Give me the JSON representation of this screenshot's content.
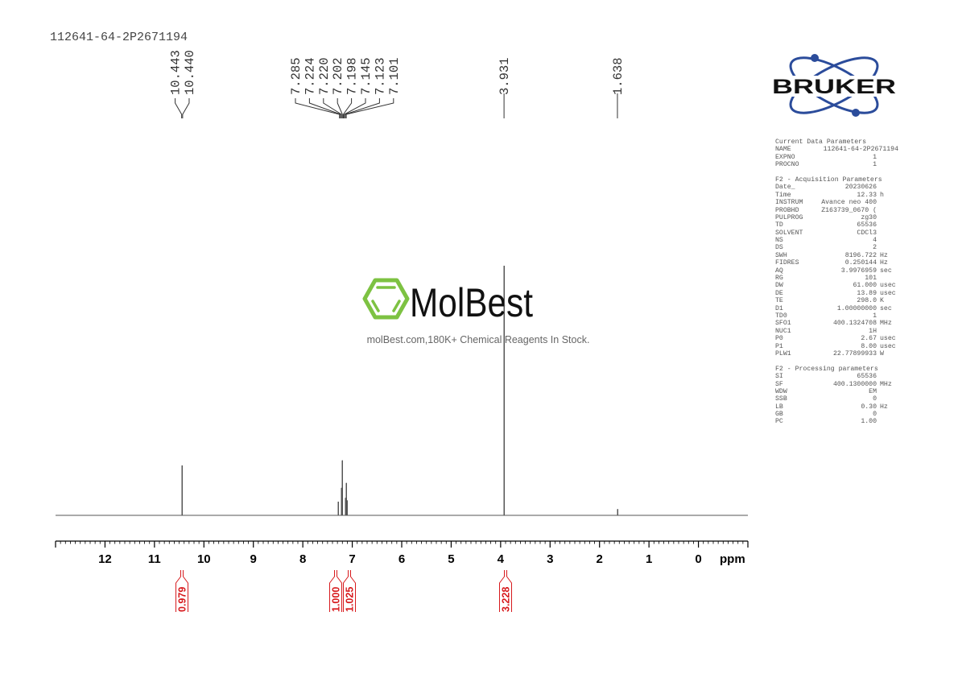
{
  "sample_name": "112641-64-2P2671194",
  "brand": {
    "text": "BRUKER",
    "color": "#2b4c9b"
  },
  "watermark": {
    "name": "MolBest",
    "tagline": "molBest.com,180K+ Chemical Reagents In Stock.",
    "color": "#7dc242"
  },
  "parameters": {
    "current": {
      "title": "Current Data Parameters",
      "rows": [
        {
          "k": "NAME",
          "v": "112641-64-2P2671194",
          "u": ""
        },
        {
          "k": "EXPNO",
          "v": "1",
          "u": ""
        },
        {
          "k": "PROCNO",
          "v": "1",
          "u": ""
        }
      ]
    },
    "acquisition": {
      "title": "F2 - Acquisition Parameters",
      "rows": [
        {
          "k": "Date_",
          "v": "20230626",
          "u": ""
        },
        {
          "k": "Time",
          "v": "12.33",
          "u": "h"
        },
        {
          "k": "INSTRUM",
          "v": "Avance neo 400",
          "u": ""
        },
        {
          "k": "PROBHD",
          "v": "Z163739_0670 (",
          "u": ""
        },
        {
          "k": "PULPROG",
          "v": "zg30",
          "u": ""
        },
        {
          "k": "TD",
          "v": "65536",
          "u": ""
        },
        {
          "k": "SOLVENT",
          "v": "CDCl3",
          "u": ""
        },
        {
          "k": "NS",
          "v": "4",
          "u": ""
        },
        {
          "k": "DS",
          "v": "2",
          "u": ""
        },
        {
          "k": "SWH",
          "v": "8196.722",
          "u": "Hz"
        },
        {
          "k": "FIDRES",
          "v": "0.250144",
          "u": "Hz"
        },
        {
          "k": "AQ",
          "v": "3.9976959",
          "u": "sec"
        },
        {
          "k": "RG",
          "v": "101",
          "u": ""
        },
        {
          "k": "DW",
          "v": "61.000",
          "u": "usec"
        },
        {
          "k": "DE",
          "v": "13.89",
          "u": "usec"
        },
        {
          "k": "TE",
          "v": "298.0",
          "u": "K"
        },
        {
          "k": "D1",
          "v": "1.00000000",
          "u": "sec"
        },
        {
          "k": "TD0",
          "v": "1",
          "u": ""
        },
        {
          "k": "SFO1",
          "v": "400.1324708",
          "u": "MHz"
        },
        {
          "k": "NUC1",
          "v": "1H",
          "u": ""
        },
        {
          "k": "P0",
          "v": "2.67",
          "u": "usec"
        },
        {
          "k": "P1",
          "v": "8.00",
          "u": "usec"
        },
        {
          "k": "PLW1",
          "v": "22.77899933",
          "u": "W"
        }
      ]
    },
    "processing": {
      "title": "F2 - Processing parameters",
      "rows": [
        {
          "k": "SI",
          "v": "65536",
          "u": ""
        },
        {
          "k": "SF",
          "v": "400.1300000",
          "u": "MHz"
        },
        {
          "k": "WDW",
          "v": "EM",
          "u": ""
        },
        {
          "k": "SSB",
          "v": "0",
          "u": ""
        },
        {
          "k": "LB",
          "v": "0.30",
          "u": "Hz"
        },
        {
          "k": "GB",
          "v": "0",
          "u": ""
        },
        {
          "k": "PC",
          "v": "1.00",
          "u": ""
        }
      ]
    }
  },
  "chart_data": {
    "type": "line",
    "xlabel": "ppm",
    "xlim": [
      13.0,
      -1.0
    ],
    "x_ticks": [
      "12",
      "11",
      "10",
      "9",
      "8",
      "7",
      "6",
      "5",
      "4",
      "3",
      "2",
      "1",
      "0"
    ],
    "grid": false,
    "line_color": "#555555",
    "integral_color": "#d7191c",
    "peaks": [
      {
        "ppm": 10.443,
        "intensity": 10
      },
      {
        "ppm": 10.44,
        "intensity": 10
      },
      {
        "ppm": 7.285,
        "intensity": 5.5
      },
      {
        "ppm": 7.224,
        "intensity": 6
      },
      {
        "ppm": 7.22,
        "intensity": 5
      },
      {
        "ppm": 7.202,
        "intensity": 11
      },
      {
        "ppm": 7.198,
        "intensity": 11
      },
      {
        "ppm": 7.145,
        "intensity": 7
      },
      {
        "ppm": 7.123,
        "intensity": 13
      },
      {
        "ppm": 7.101,
        "intensity": 6
      },
      {
        "ppm": 3.931,
        "intensity": 100
      },
      {
        "ppm": 1.638,
        "intensity": 2.5
      }
    ],
    "peak_label_groups": [
      {
        "labels": [
          "10.443",
          "10.440"
        ],
        "ppm": 10.44
      },
      {
        "labels": [
          "7.285",
          "7.224",
          "7.220",
          "7.202",
          "7.198",
          "7.145",
          "7.123",
          "7.101"
        ],
        "ppm": 7.19
      },
      {
        "labels": [
          "3.931"
        ],
        "ppm": 3.931
      },
      {
        "labels": [
          "1.638"
        ],
        "ppm": 1.638
      }
    ],
    "integrals": [
      {
        "ppm": 10.44,
        "value": "0.979"
      },
      {
        "ppm": 7.22,
        "value": "1.000"
      },
      {
        "ppm": 7.12,
        "value": "1.025"
      },
      {
        "ppm": 3.931,
        "value": "3.228"
      }
    ]
  }
}
